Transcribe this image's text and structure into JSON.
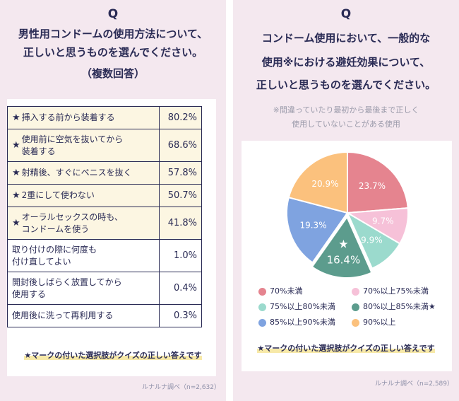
{
  "left": {
    "q_mark": "Q",
    "question": [
      "男性用コンドームの使用方法について、",
      "正しいと思うものを選んでください。",
      "（複数回答）"
    ],
    "rows": [
      {
        "label_lines": [
          "挿入する前から装着する"
        ],
        "value": "80.2%",
        "correct": true
      },
      {
        "label_lines": [
          "使用前に空気を抜いてから",
          "装着する"
        ],
        "value": "68.6%",
        "correct": true
      },
      {
        "label_lines": [
          "射精後、すぐにペニスを抜く"
        ],
        "value": "57.8%",
        "correct": true
      },
      {
        "label_lines": [
          "2重にして使わない"
        ],
        "value": "50.7%",
        "correct": true
      },
      {
        "label_lines": [
          "オーラルセックスの時も、",
          "コンドームを使う"
        ],
        "value": "41.8%",
        "correct": true
      },
      {
        "label_lines": [
          "取り付けの際に何度も",
          "付け直してよい"
        ],
        "value": "1.0%",
        "correct": false
      },
      {
        "label_lines": [
          "開封後しばらく放置してから",
          "使用する"
        ],
        "value": "0.4%",
        "correct": false
      },
      {
        "label_lines": [
          "使用後に洗って再利用する"
        ],
        "value": "0.3%",
        "correct": false
      }
    ],
    "star_symbol": "★",
    "note": "★マークの付いた選択肢がクイズの正しい答えです",
    "source": "ルナルナ調べ（n=2,632）"
  },
  "right": {
    "q_mark": "Q",
    "question": [
      "コンドーム使用において、一般的な",
      "使用※における避妊効果について、",
      "正しいと思うものを選んでください。"
    ],
    "sub": [
      "※間違っていたり最初から最後まで正しく",
      "使用していないことがある使用"
    ],
    "note": "★マークの付いた選択肢がクイズの正しい答えです",
    "source": "ルナルナ調べ（n=2,589）"
  },
  "chart_data": {
    "type": "pie",
    "slices": [
      {
        "label": "70%未満",
        "value": 23.7,
        "display": "23.7%",
        "color": "#e5848f"
      },
      {
        "label": "70%以上75%未満",
        "value": 9.7,
        "display": "9.7%",
        "color": "#f6c1d8"
      },
      {
        "label": "75%以上80%未満",
        "value": 9.9,
        "display": "9.9%",
        "color": "#9bdacd"
      },
      {
        "label": "80%以上85%未満★",
        "value": 16.4,
        "display": "16.4%",
        "color": "#5c9c8d",
        "correct": true
      },
      {
        "label": "85%以上90%未満",
        "value": 19.3,
        "display": "19.3%",
        "color": "#7fa3e0"
      },
      {
        "label": "90%以上",
        "value": 20.9,
        "display": "20.9%",
        "color": "#fbc17d"
      }
    ],
    "star_symbol": "★"
  }
}
